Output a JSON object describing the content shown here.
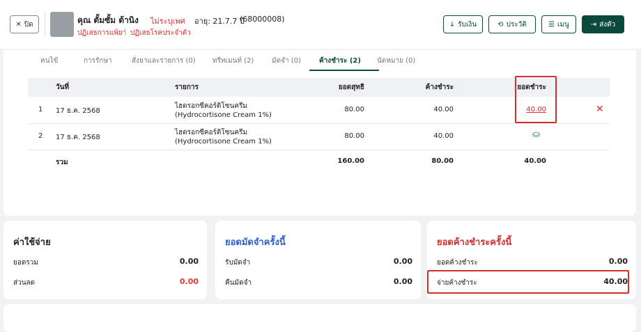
{
  "header": {
    "close": "ปิด",
    "name": "คุณ ตั้มซั้ม ต้านิง",
    "gender": "ไม่ระบุเพศ",
    "age": "อายุ: 21.7.7 ปี",
    "hn": "(68000008)",
    "allergy": "ปฏิเสธการแพ้ยา",
    "disease": "ปฏิเสธโรคประจำตัว",
    "buttons": [
      "รับเงิน",
      "ประวัติ",
      "เมนู",
      "ส่งตัว"
    ]
  },
  "tabs": {
    "items": [
      "คนไข้",
      "การรักษา",
      "สั่งยาและรายการ (0)",
      "ทรีทเมนท์ (2)",
      "มัดจำ (0)",
      "ค้างชำระ (2)",
      "นัดหมาย (0)"
    ],
    "active": 5
  },
  "table": {
    "headers": [
      "วันที่",
      "รายการ",
      "ยอดสุทธิ",
      "ค้างชำระ",
      "ยอดชำระ"
    ],
    "rows": [
      [
        "1",
        "17 ธ.ค. 2568",
        "ไฮดรอกซีคอร์ติโซนครีม",
        "(Hydrocortisone Cream 1%)",
        "80.00",
        "40.00",
        "40.00"
      ],
      [
        "2",
        "17 ธ.ค. 2568",
        "ไฮดรอกซีคอร์ติโซนครีม",
        "(Hydrocortisone Cream 1%)",
        "80.00",
        "40.00",
        null
      ]
    ],
    "total": [
      "รวม",
      "160.00",
      "80.00",
      "40.00"
    ]
  },
  "cards": [
    {
      "title": "ค่าใช้จ่าย",
      "rows": [
        [
          "ยอดรวม",
          "0.00"
        ],
        [
          "ส่วนลด",
          "0.00"
        ]
      ]
    },
    {
      "title": "ยอดมัดจำครั้งนี้",
      "rows": [
        [
          "รับมัดจำ",
          "0.00"
        ],
        [
          "คืนมัดจำ",
          "0.00"
        ]
      ]
    },
    {
      "title": "ยอดค้างชำระครั้งนี้",
      "rows": [
        [
          "ยอดค้างชำระ",
          "0.00"
        ],
        [
          "จ่ายค้างชำระ",
          "40.00"
        ]
      ]
    }
  ]
}
